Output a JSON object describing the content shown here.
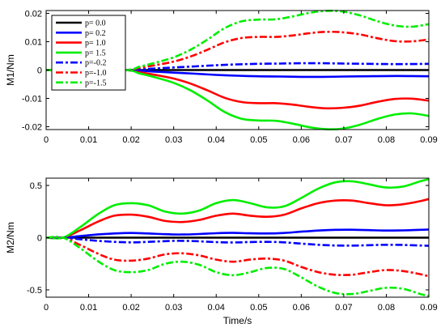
{
  "chart_data": [
    {
      "type": "line",
      "ylabel": "M1/Nm",
      "xlim": [
        0,
        0.09
      ],
      "ylim": [
        -0.021,
        0.021
      ],
      "xticks": [
        0,
        0.01,
        0.02,
        0.03,
        0.04,
        0.05,
        0.06,
        0.07,
        0.08,
        0.09
      ],
      "xtick_labels": [
        "0",
        "0.01",
        "0.02",
        "0.03",
        "0.04",
        "0.05",
        "0.06",
        "0.07",
        "0.08",
        "0.09"
      ],
      "yticks": [
        -0.02,
        -0.01,
        0,
        0.01,
        0.02
      ],
      "ytick_labels": [
        "-0.02",
        "-0.01",
        "0",
        "0.01",
        "0.02"
      ],
      "grid": false,
      "legend": "top-left",
      "series": [
        {
          "name": "p= 0.0",
          "color": "#000000",
          "dash": "solid",
          "x": [
            0,
            0.018,
            0.09
          ],
          "y": [
            0,
            0,
            0
          ]
        },
        {
          "name": "p= 0.2",
          "color": "#0000ff",
          "dash": "solid",
          "x": [
            0,
            0.018,
            0.025,
            0.03,
            0.035,
            0.04,
            0.045,
            0.05,
            0.055,
            0.06,
            0.065,
            0.07,
            0.075,
            0.08,
            0.085,
            0.09
          ],
          "y": [
            0,
            0,
            -0.0005,
            -0.0009,
            -0.0013,
            -0.0017,
            -0.002,
            -0.0022,
            -0.0023,
            -0.0024,
            -0.0024,
            -0.0023,
            -0.0022,
            -0.0021,
            -0.0021,
            -0.0022
          ]
        },
        {
          "name": "p= 1.0",
          "color": "#ff0000",
          "dash": "solid",
          "x": [
            0,
            0.018,
            0.022,
            0.026,
            0.03,
            0.034,
            0.038,
            0.042,
            0.046,
            0.05,
            0.054,
            0.058,
            0.062,
            0.066,
            0.07,
            0.074,
            0.078,
            0.082,
            0.086,
            0.09
          ],
          "y": [
            0,
            0,
            -0.0008,
            -0.0018,
            -0.003,
            -0.0048,
            -0.0072,
            -0.0098,
            -0.0113,
            -0.0117,
            -0.0117,
            -0.0122,
            -0.013,
            -0.0135,
            -0.0133,
            -0.0125,
            -0.0112,
            -0.0102,
            -0.0101,
            -0.0108
          ]
        },
        {
          "name": "p= 1.5",
          "color": "#00ee00",
          "dash": "solid",
          "x": [
            0,
            0.018,
            0.022,
            0.026,
            0.03,
            0.034,
            0.038,
            0.042,
            0.046,
            0.05,
            0.054,
            0.058,
            0.062,
            0.066,
            0.07,
            0.074,
            0.078,
            0.082,
            0.086,
            0.09
          ],
          "y": [
            0,
            0,
            -0.0012,
            -0.0027,
            -0.0045,
            -0.0072,
            -0.0108,
            -0.0148,
            -0.0172,
            -0.0178,
            -0.0179,
            -0.0189,
            -0.0202,
            -0.0209,
            -0.0206,
            -0.0192,
            -0.0172,
            -0.0157,
            -0.0153,
            -0.0162
          ]
        },
        {
          "name": "p=-0.2",
          "color": "#0000ff",
          "dash": "dashdot",
          "x": [
            0,
            0.018,
            0.025,
            0.03,
            0.035,
            0.04,
            0.045,
            0.05,
            0.055,
            0.06,
            0.065,
            0.07,
            0.075,
            0.08,
            0.085,
            0.09
          ],
          "y": [
            0,
            0,
            0.0005,
            0.0009,
            0.0013,
            0.0017,
            0.002,
            0.0022,
            0.0023,
            0.0024,
            0.0024,
            0.0023,
            0.0022,
            0.0021,
            0.0021,
            0.0022
          ]
        },
        {
          "name": "p=-1.0",
          "color": "#ff0000",
          "dash": "dashdot",
          "x": [
            0,
            0.018,
            0.022,
            0.026,
            0.03,
            0.034,
            0.038,
            0.042,
            0.046,
            0.05,
            0.054,
            0.058,
            0.062,
            0.066,
            0.07,
            0.074,
            0.078,
            0.082,
            0.086,
            0.09
          ],
          "y": [
            0,
            0,
            0.0008,
            0.0018,
            0.003,
            0.0048,
            0.0072,
            0.0098,
            0.0113,
            0.0117,
            0.0117,
            0.0122,
            0.013,
            0.0135,
            0.0133,
            0.0125,
            0.0112,
            0.0102,
            0.0101,
            0.0108
          ]
        },
        {
          "name": "p=-1.5",
          "color": "#00ee00",
          "dash": "dashdot",
          "x": [
            0,
            0.018,
            0.022,
            0.026,
            0.03,
            0.034,
            0.038,
            0.042,
            0.046,
            0.05,
            0.054,
            0.058,
            0.062,
            0.066,
            0.07,
            0.074,
            0.078,
            0.082,
            0.086,
            0.09
          ],
          "y": [
            0,
            0,
            0.0012,
            0.0027,
            0.0045,
            0.0072,
            0.0108,
            0.0148,
            0.0172,
            0.0178,
            0.0179,
            0.0189,
            0.0202,
            0.0209,
            0.0206,
            0.0192,
            0.0172,
            0.0157,
            0.0153,
            0.0162
          ]
        }
      ]
    },
    {
      "type": "line",
      "xlabel": "Time/s",
      "ylabel": "M2/Nm",
      "xlim": [
        0,
        0.09
      ],
      "ylim": [
        -0.57,
        0.57
      ],
      "xticks": [
        0,
        0.01,
        0.02,
        0.03,
        0.04,
        0.05,
        0.06,
        0.07,
        0.08,
        0.09
      ],
      "xtick_labels": [
        "0",
        "0.01",
        "0.02",
        "0.03",
        "0.04",
        "0.05",
        "0.06",
        "0.07",
        "0.08",
        "0.09"
      ],
      "yticks": [
        -0.5,
        0,
        0.5
      ],
      "ytick_labels": [
        "-0.5",
        "0",
        "0.5"
      ],
      "grid": false,
      "series": [
        {
          "name": "p= 0.0",
          "color": "#000000",
          "dash": "solid",
          "x": [
            0,
            0.09
          ],
          "y": [
            0,
            0
          ]
        },
        {
          "name": "p= 0.2",
          "color": "#0000ff",
          "dash": "solid",
          "x": [
            0,
            0.004,
            0.008,
            0.012,
            0.016,
            0.02,
            0.024,
            0.028,
            0.032,
            0.036,
            0.04,
            0.044,
            0.048,
            0.052,
            0.056,
            0.06,
            0.064,
            0.068,
            0.072,
            0.076,
            0.08,
            0.084,
            0.088,
            0.09
          ],
          "y": [
            0,
            0,
            0.015,
            0.03,
            0.04,
            0.045,
            0.04,
            0.033,
            0.03,
            0.035,
            0.043,
            0.046,
            0.042,
            0.04,
            0.045,
            0.057,
            0.068,
            0.075,
            0.076,
            0.072,
            0.068,
            0.07,
            0.075,
            0.078
          ]
        },
        {
          "name": "p= 1.0",
          "color": "#ff0000",
          "dash": "solid",
          "x": [
            0,
            0.004,
            0.008,
            0.012,
            0.016,
            0.02,
            0.024,
            0.028,
            0.032,
            0.036,
            0.04,
            0.044,
            0.048,
            0.052,
            0.056,
            0.06,
            0.064,
            0.068,
            0.072,
            0.076,
            0.08,
            0.084,
            0.088,
            0.09
          ],
          "y": [
            0,
            0,
            0.07,
            0.15,
            0.21,
            0.22,
            0.2,
            0.16,
            0.15,
            0.17,
            0.21,
            0.23,
            0.21,
            0.2,
            0.22,
            0.28,
            0.33,
            0.355,
            0.355,
            0.33,
            0.31,
            0.32,
            0.35,
            0.37
          ]
        },
        {
          "name": "p= 1.5",
          "color": "#00ee00",
          "dash": "solid",
          "x": [
            0,
            0.004,
            0.008,
            0.012,
            0.016,
            0.02,
            0.024,
            0.028,
            0.032,
            0.036,
            0.04,
            0.044,
            0.048,
            0.052,
            0.056,
            0.06,
            0.064,
            0.068,
            0.072,
            0.076,
            0.08,
            0.084,
            0.088,
            0.09
          ],
          "y": [
            0,
            0,
            0.1,
            0.22,
            0.31,
            0.33,
            0.31,
            0.25,
            0.23,
            0.26,
            0.33,
            0.36,
            0.33,
            0.29,
            0.3,
            0.38,
            0.47,
            0.53,
            0.54,
            0.51,
            0.48,
            0.49,
            0.54,
            0.56
          ]
        },
        {
          "name": "p=-0.2",
          "color": "#0000ff",
          "dash": "dashdot",
          "x": [
            0,
            0.004,
            0.008,
            0.012,
            0.016,
            0.02,
            0.024,
            0.028,
            0.032,
            0.036,
            0.04,
            0.044,
            0.048,
            0.052,
            0.056,
            0.06,
            0.064,
            0.068,
            0.072,
            0.076,
            0.08,
            0.084,
            0.088,
            0.09
          ],
          "y": [
            0,
            0,
            -0.015,
            -0.03,
            -0.04,
            -0.045,
            -0.04,
            -0.033,
            -0.03,
            -0.035,
            -0.043,
            -0.046,
            -0.042,
            -0.04,
            -0.045,
            -0.057,
            -0.068,
            -0.075,
            -0.076,
            -0.072,
            -0.068,
            -0.07,
            -0.075,
            -0.078
          ]
        },
        {
          "name": "p=-1.0",
          "color": "#ff0000",
          "dash": "dashdot",
          "x": [
            0,
            0.004,
            0.008,
            0.012,
            0.016,
            0.02,
            0.024,
            0.028,
            0.032,
            0.036,
            0.04,
            0.044,
            0.048,
            0.052,
            0.056,
            0.06,
            0.064,
            0.068,
            0.072,
            0.076,
            0.08,
            0.084,
            0.088,
            0.09
          ],
          "y": [
            0,
            0,
            -0.07,
            -0.15,
            -0.21,
            -0.22,
            -0.2,
            -0.16,
            -0.15,
            -0.17,
            -0.21,
            -0.23,
            -0.21,
            -0.2,
            -0.22,
            -0.28,
            -0.33,
            -0.355,
            -0.355,
            -0.33,
            -0.31,
            -0.32,
            -0.35,
            -0.37
          ]
        },
        {
          "name": "p=-1.5",
          "color": "#00ee00",
          "dash": "dashdot",
          "x": [
            0,
            0.004,
            0.008,
            0.012,
            0.016,
            0.02,
            0.024,
            0.028,
            0.032,
            0.036,
            0.04,
            0.044,
            0.048,
            0.052,
            0.056,
            0.06,
            0.064,
            0.068,
            0.072,
            0.076,
            0.08,
            0.084,
            0.088,
            0.09
          ],
          "y": [
            0,
            0,
            -0.1,
            -0.22,
            -0.31,
            -0.33,
            -0.31,
            -0.25,
            -0.23,
            -0.26,
            -0.33,
            -0.36,
            -0.33,
            -0.29,
            -0.3,
            -0.38,
            -0.47,
            -0.53,
            -0.54,
            -0.51,
            -0.48,
            -0.49,
            -0.54,
            -0.56
          ]
        }
      ]
    }
  ]
}
